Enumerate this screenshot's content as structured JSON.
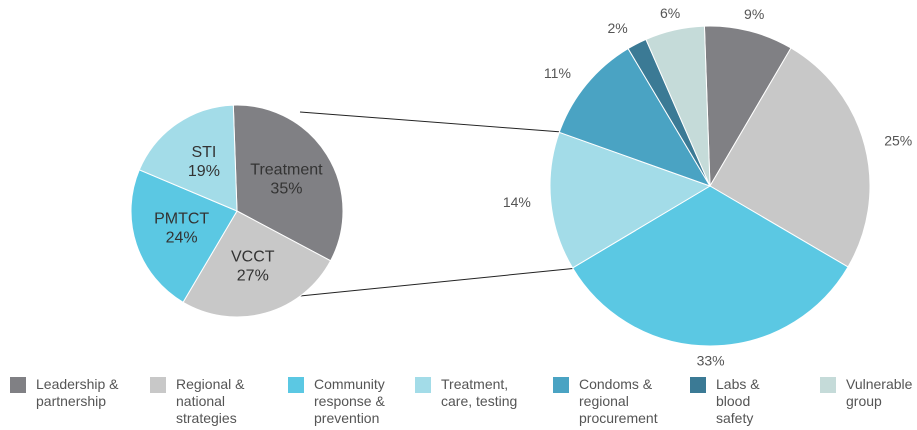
{
  "chart_data": [
    {
      "type": "pie",
      "categories": [
        "Treatment",
        "VCCT",
        "PMTCT",
        "STI"
      ],
      "values": [
        35,
        27,
        24,
        19
      ],
      "value_labels": [
        "35%",
        "27%",
        "24%",
        "19%"
      ],
      "colors": [
        "#808084",
        "#c8c8c8",
        "#5bc8e3",
        "#a3dce8"
      ]
    },
    {
      "type": "pie",
      "categories": [
        "Leadership & partnership",
        "Regional & national strategies",
        "Community response & prevention",
        "Treatment, care, testing",
        "Condoms & regional procurement",
        "Labs & blood safety",
        "Vulnerable group"
      ],
      "values": [
        9,
        25,
        33,
        14,
        11,
        2,
        6
      ],
      "value_labels": [
        "9%",
        "25%",
        "33%",
        "14%",
        "11%",
        "2%",
        "6%"
      ],
      "colors": [
        "#808084",
        "#c8c8c8",
        "#5bc8e3",
        "#a3dce8",
        "#4aa3c3",
        "#3b7a95",
        "#c5dbd9"
      ],
      "legend": "bottom"
    }
  ]
}
